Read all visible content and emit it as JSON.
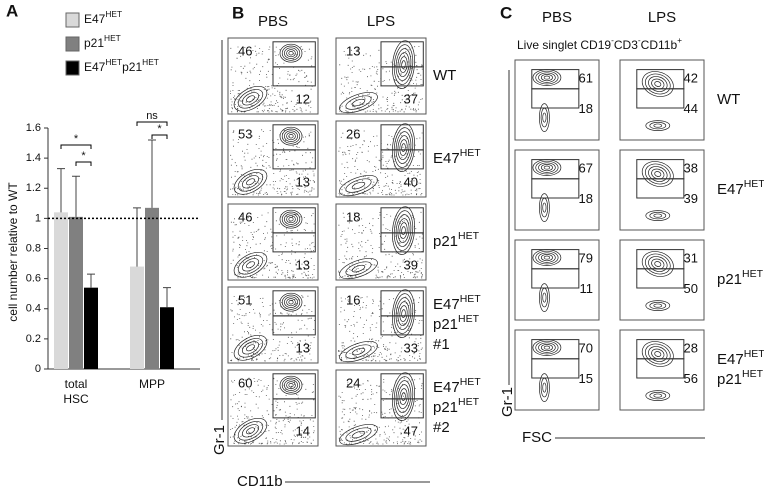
{
  "panel_letters": [
    "A",
    "B",
    "C"
  ],
  "chart_data": {
    "type": "bar",
    "ylabel": "cell number relative to WT",
    "categories": [
      "total HSC",
      "MPP"
    ],
    "series": [
      {
        "name": "E47HET",
        "color": "#d9d9d9",
        "values": [
          1.04,
          0.68
        ],
        "errors": [
          0.29,
          0.39
        ]
      },
      {
        "name": "p21HET",
        "color": "#808080",
        "values": [
          1.01,
          1.07
        ],
        "errors": [
          0.27,
          0.45
        ]
      },
      {
        "name": "E47HETp21HET",
        "color": "#000000",
        "values": [
          0.54,
          0.41
        ],
        "errors": [
          0.09,
          0.13
        ]
      }
    ],
    "ylim": [
      0,
      1.6
    ],
    "yticks": [
      0,
      0.2,
      0.4,
      0.6,
      0.8,
      1,
      1.2,
      1.4,
      1.6
    ],
    "reference_line": 1,
    "annotations": [
      "*",
      "*",
      "ns",
      "*"
    ]
  },
  "panel_b": {
    "columns": [
      "PBS",
      "LPS"
    ],
    "ylabel": "Gr-1",
    "xlabel": "CD11b",
    "rows": [
      {
        "label": [
          "WT"
        ],
        "pbs": [
          46,
          12
        ],
        "lps": [
          13,
          37
        ]
      },
      {
        "label": [
          "E47HET"
        ],
        "pbs": [
          53,
          13
        ],
        "lps": [
          26,
          40
        ]
      },
      {
        "label": [
          "p21HET"
        ],
        "pbs": [
          46,
          13
        ],
        "lps": [
          18,
          39
        ]
      },
      {
        "label": [
          "E47HET",
          "p21HET",
          "#1"
        ],
        "pbs": [
          51,
          13
        ],
        "lps": [
          16,
          33
        ]
      },
      {
        "label": [
          "E47HET",
          "p21HET",
          "#2"
        ],
        "pbs": [
          60,
          14
        ],
        "lps": [
          24,
          47
        ]
      }
    ]
  },
  "panel_c": {
    "columns": [
      "PBS",
      "LPS"
    ],
    "title": "Live singlet CD19-CD3-CD11b+",
    "ylabel": "Gr-1",
    "xlabel": "FSC",
    "rows": [
      {
        "label": [
          "WT"
        ],
        "pbs": [
          61,
          18
        ],
        "lps": [
          42,
          44
        ]
      },
      {
        "label": [
          "E47HET"
        ],
        "pbs": [
          67,
          18
        ],
        "lps": [
          38,
          39
        ]
      },
      {
        "label": [
          "p21HET"
        ],
        "pbs": [
          79,
          11
        ],
        "lps": [
          31,
          50
        ]
      },
      {
        "label": [
          "E47HET",
          "p21HET"
        ],
        "pbs": [
          70,
          15
        ],
        "lps": [
          28,
          56
        ]
      }
    ]
  }
}
